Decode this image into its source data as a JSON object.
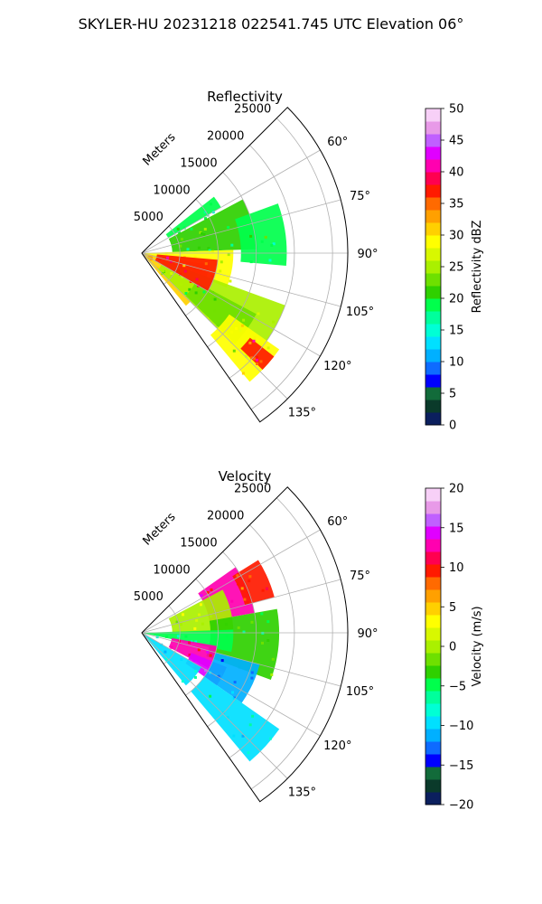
{
  "figure": {
    "suptitle": "SKYLER-HU  20231218  022541.745 UTC Elevation 06°"
  },
  "chart_data": [
    {
      "type": "heatmap",
      "subtype": "polar-sector-ppi",
      "title": "Reflectivity",
      "radial_axis_label": "Meters",
      "radial_ticks": [
        5000,
        10000,
        15000,
        20000,
        25000
      ],
      "radial_tick_labels": [
        "5000",
        "10000",
        "15000",
        "20000",
        "25000"
      ],
      "rlim": [
        0,
        27000
      ],
      "azimuth_range_deg": [
        45,
        145
      ],
      "azimuth_ticks": [
        60,
        75,
        90,
        105,
        120,
        135
      ],
      "azimuth_tick_labels": [
        "60°",
        "75°",
        "90°",
        "105°",
        "120°",
        "135°"
      ],
      "grid": true,
      "colorbar": {
        "label": "Reflectivity dBZ",
        "range": [
          0,
          50
        ],
        "ticks": [
          0,
          5,
          10,
          15,
          20,
          25,
          30,
          35,
          40,
          45,
          50
        ],
        "tick_labels": [
          "0",
          "5",
          "10",
          "15",
          "20",
          "25",
          "30",
          "35",
          "40",
          "45",
          "50"
        ],
        "colors": [
          "#0b1f5e",
          "#0a3a2a",
          "#126b3a",
          "#0000ff",
          "#0e6bff",
          "#00b0ff",
          "#00e0ff",
          "#00ffd5",
          "#00ff9c",
          "#00ff4c",
          "#2fd000",
          "#6ee000",
          "#aaf000",
          "#d8f800",
          "#ffff00",
          "#ffd000",
          "#ffa000",
          "#ff6a00",
          "#ff1a00",
          "#ff0050",
          "#ff00b0",
          "#e000ff",
          "#c060ff",
          "#e89ae8",
          "#f7d0f7"
        ]
      },
      "regions": [
        {
          "az": [
            52,
            60
          ],
          "r": [
            4000,
            12000
          ],
          "value": 18
        },
        {
          "az": [
            62,
            88
          ],
          "r": [
            4000,
            15000
          ],
          "value": 21
        },
        {
          "az": [
            70,
            95
          ],
          "r": [
            13000,
            19000
          ],
          "value": 19
        },
        {
          "az": [
            88,
            112
          ],
          "r": [
            0,
            12000
          ],
          "value": 28
        },
        {
          "az": [
            100,
            140
          ],
          "r": [
            0,
            9000
          ],
          "value": 30
        },
        {
          "az": [
            110,
            135
          ],
          "r": [
            3000,
            20000
          ],
          "value": 24
        },
        {
          "az": [
            118,
            134
          ],
          "r": [
            8000,
            17000
          ],
          "value": 22
        },
        {
          "az": [
            125,
            140
          ],
          "r": [
            14000,
            22000
          ],
          "value": 28
        },
        {
          "az": [
            128,
            134
          ],
          "r": [
            18000,
            22000
          ],
          "value": 36
        },
        {
          "az": [
            95,
            120
          ],
          "r": [
            2000,
            10000
          ],
          "value": 36
        }
      ]
    },
    {
      "type": "heatmap",
      "subtype": "polar-sector-ppi",
      "title": "Velocity",
      "radial_axis_label": "Meters",
      "radial_ticks": [
        5000,
        10000,
        15000,
        20000,
        25000
      ],
      "radial_tick_labels": [
        "5000",
        "10000",
        "15000",
        "20000",
        "25000"
      ],
      "rlim": [
        0,
        27000
      ],
      "azimuth_range_deg": [
        45,
        145
      ],
      "azimuth_ticks": [
        60,
        75,
        90,
        105,
        120,
        135
      ],
      "azimuth_tick_labels": [
        "60°",
        "75°",
        "90°",
        "105°",
        "120°",
        "135°"
      ],
      "grid": true,
      "colorbar": {
        "label": "Velocity (m/s)",
        "range": [
          -20,
          20
        ],
        "ticks": [
          -20,
          -15,
          -10,
          -5,
          0,
          5,
          10,
          15,
          20
        ],
        "tick_labels": [
          "−20",
          "−15",
          "−10",
          "−5",
          "0",
          "5",
          "10",
          "15",
          "20"
        ],
        "colors": [
          "#0b1f5e",
          "#0a3a2a",
          "#126b3a",
          "#0000ff",
          "#0e6bff",
          "#00b0ff",
          "#00e0ff",
          "#00ffd5",
          "#00ff9c",
          "#00ff4c",
          "#2fd000",
          "#6ee000",
          "#aaf000",
          "#d8f800",
          "#ffff00",
          "#ffd000",
          "#ffa000",
          "#ff6a00",
          "#ff1a00",
          "#ff0050",
          "#ff00b0",
          "#e000ff",
          "#c060ff",
          "#e89ae8",
          "#f7d0f7"
        ]
      },
      "regions": [
        {
          "az": [
            55,
            80
          ],
          "r": [
            9000,
            15000
          ],
          "value": 12
        },
        {
          "az": [
            58,
            75
          ],
          "r": [
            14000,
            18000
          ],
          "value": 10
        },
        {
          "az": [
            62,
            90
          ],
          "r": [
            4000,
            12000
          ],
          "value": 0
        },
        {
          "az": [
            80,
            110
          ],
          "r": [
            9000,
            18000
          ],
          "value": -3
        },
        {
          "az": [
            88,
            102
          ],
          "r": [
            0,
            12000
          ],
          "value": -5
        },
        {
          "az": [
            100,
            118
          ],
          "r": [
            4000,
            10000
          ],
          "value": 12
        },
        {
          "az": [
            112,
            125
          ],
          "r": [
            7000,
            12000
          ],
          "value": 15
        },
        {
          "az": [
            105,
            125
          ],
          "r": [
            10000,
            16000
          ],
          "value": -12
        },
        {
          "az": [
            120,
            140
          ],
          "r": [
            0,
            9000
          ],
          "value": -10
        },
        {
          "az": [
            125,
            140
          ],
          "r": [
            10000,
            22000
          ],
          "value": -9
        }
      ]
    }
  ]
}
